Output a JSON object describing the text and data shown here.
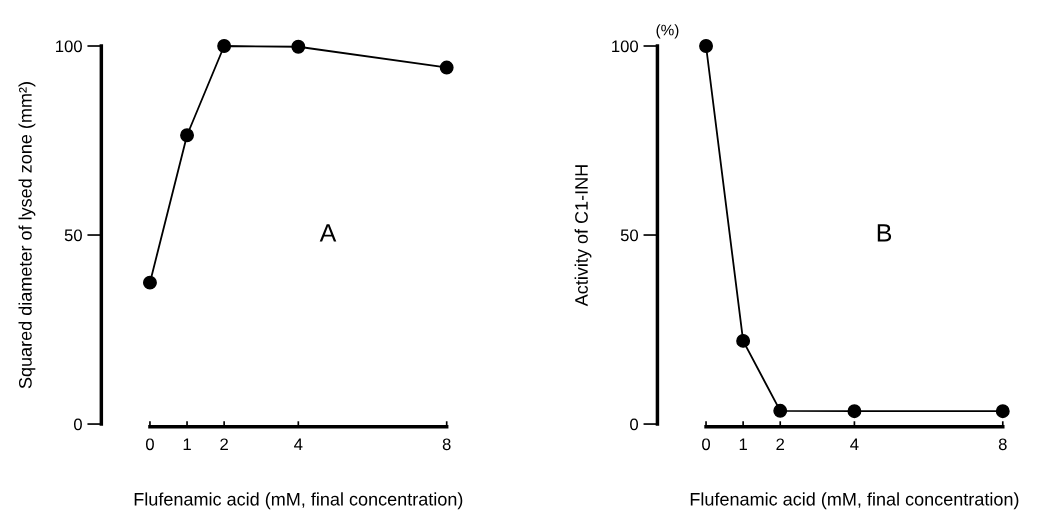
{
  "chart_data": [
    {
      "type": "line",
      "xlabel": "Flufenamic acid (mM, final concentration)",
      "ylabel": "Squared diameter of lysed zone (mm²)",
      "annotations": [
        "A"
      ],
      "x": [
        0,
        1,
        2,
        4,
        8
      ],
      "xlim": [
        0,
        8
      ],
      "xticks": [
        0,
        1,
        2,
        4,
        8
      ],
      "ylim": [
        0,
        100
      ],
      "yticks": [
        0,
        50,
        100
      ],
      "marker": "circle",
      "line_style": "solid",
      "grid": false,
      "legend": false,
      "series": [
        {
          "color": "#000000",
          "values": [
            37.4,
            76.4,
            100,
            99.8,
            94.3
          ]
        }
      ]
    },
    {
      "type": "line",
      "xlabel": "Flufenamic acid (mM, final concentration)",
      "ylabel": "Activity of C1-INH",
      "annotations": [
        "B",
        "(%)"
      ],
      "x": [
        0,
        1,
        2,
        4,
        8
      ],
      "xlim": [
        0,
        8
      ],
      "xticks": [
        0,
        1,
        2,
        4,
        8
      ],
      "ylim": [
        0,
        100
      ],
      "yticks": [
        0,
        50,
        100
      ],
      "marker": "circle",
      "line_style": "solid",
      "grid": false,
      "legend": false,
      "series": [
        {
          "color": "#000000",
          "values": [
            100,
            22,
            3.5,
            3.4,
            3.4
          ]
        }
      ]
    }
  ]
}
